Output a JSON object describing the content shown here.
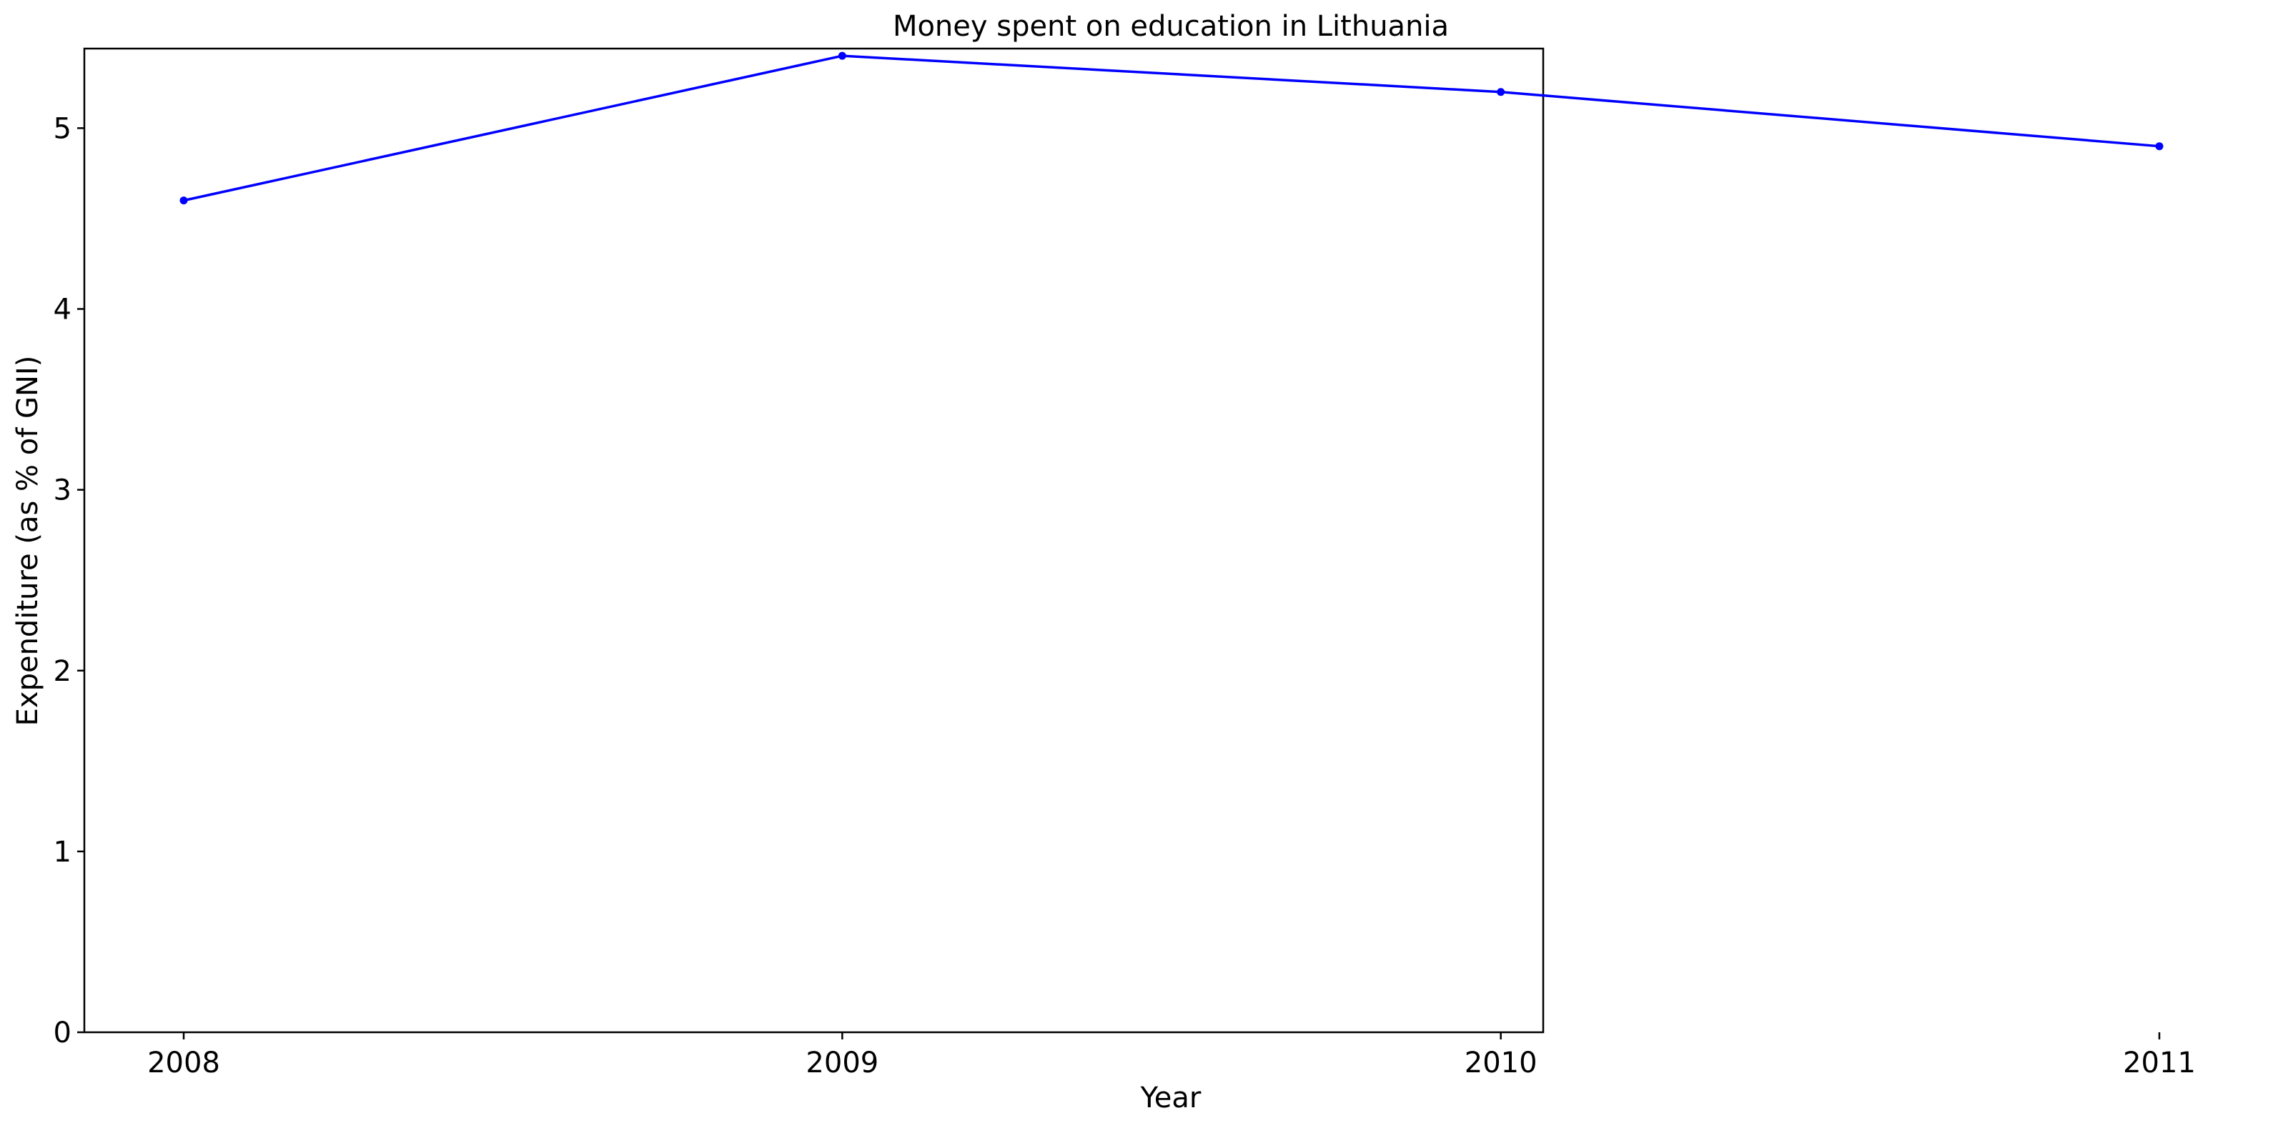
{
  "chart_data": {
    "type": "line",
    "title": "Money spent on education in Lithuania",
    "xlabel": "Year",
    "ylabel": "Expenditure (as % of GNI)",
    "x": [
      "2008",
      "2009",
      "2010",
      "2011"
    ],
    "series": [
      {
        "values": [
          4.6,
          5.4,
          5.2,
          4.9
        ],
        "color": "#0000ff",
        "marker": "circle"
      }
    ],
    "ylim": [
      0,
      5.44
    ],
    "yticks": [
      0,
      1,
      2,
      3,
      4,
      5
    ],
    "grid": false,
    "legend": "none"
  }
}
